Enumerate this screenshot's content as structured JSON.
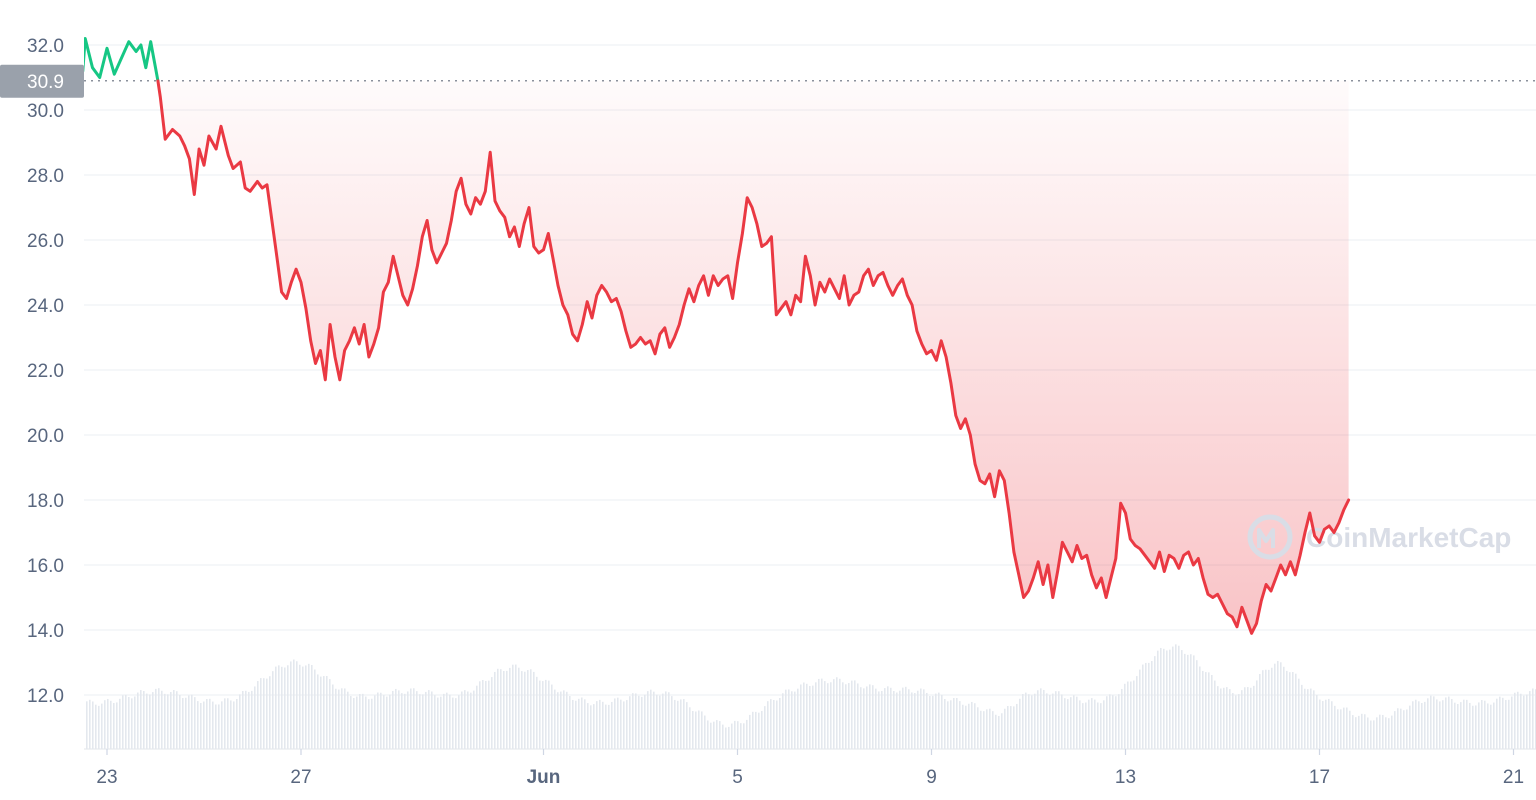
{
  "chart_data": {
    "type": "line",
    "title": "",
    "xlabel": "",
    "ylabel": "",
    "ylim": [
      10.5,
      32.5
    ],
    "yticks": [
      "12.0",
      "14.0",
      "16.0",
      "18.0",
      "20.0",
      "22.0",
      "24.0",
      "26.0",
      "28.0",
      "30.0",
      "32.0"
    ],
    "xticks": [
      {
        "label": "23",
        "day": 0
      },
      {
        "label": "27",
        "day": 4
      },
      {
        "label": "Jun",
        "day": 9,
        "bold": true
      },
      {
        "label": "5",
        "day": 13
      },
      {
        "label": "9",
        "day": 17
      },
      {
        "label": "13",
        "day": 21
      },
      {
        "label": "17",
        "day": 25
      },
      {
        "label": "21",
        "day": 29
      }
    ],
    "reference_price": 30.9,
    "reference_label": "30.9",
    "up_color": "#16c784",
    "down_color": "#ea3943",
    "grid": true,
    "legend": "none",
    "watermark": "CoinMarketCap",
    "series": [
      {
        "values": [
          [
            -0.5,
            31.2
          ],
          [
            -0.45,
            32.2
          ],
          [
            -0.3,
            31.3
          ],
          [
            -0.15,
            31.0
          ],
          [
            0.0,
            31.9
          ],
          [
            0.15,
            31.1
          ],
          [
            0.3,
            31.6
          ],
          [
            0.45,
            32.1
          ],
          [
            0.6,
            31.8
          ],
          [
            0.7,
            32.0
          ],
          [
            0.8,
            31.3
          ],
          [
            0.9,
            32.1
          ],
          [
            0.95,
            31.7
          ],
          [
            1.0,
            31.3
          ],
          [
            1.05,
            30.9
          ],
          [
            1.1,
            30.4
          ],
          [
            1.2,
            29.1
          ],
          [
            1.35,
            29.4
          ],
          [
            1.5,
            29.2
          ],
          [
            1.6,
            28.9
          ],
          [
            1.7,
            28.5
          ],
          [
            1.8,
            27.4
          ],
          [
            1.9,
            28.8
          ],
          [
            2.0,
            28.3
          ],
          [
            2.1,
            29.2
          ],
          [
            2.25,
            28.8
          ],
          [
            2.35,
            29.5
          ],
          [
            2.5,
            28.6
          ],
          [
            2.6,
            28.2
          ],
          [
            2.75,
            28.4
          ],
          [
            2.85,
            27.6
          ],
          [
            2.95,
            27.5
          ],
          [
            3.1,
            27.8
          ],
          [
            3.2,
            27.6
          ],
          [
            3.3,
            27.7
          ],
          [
            3.4,
            26.6
          ],
          [
            3.5,
            25.5
          ],
          [
            3.6,
            24.4
          ],
          [
            3.7,
            24.2
          ],
          [
            3.8,
            24.7
          ],
          [
            3.9,
            25.1
          ],
          [
            4.0,
            24.7
          ],
          [
            4.1,
            23.9
          ],
          [
            4.2,
            22.9
          ],
          [
            4.3,
            22.2
          ],
          [
            4.4,
            22.6
          ],
          [
            4.5,
            21.7
          ],
          [
            4.6,
            23.4
          ],
          [
            4.7,
            22.4
          ],
          [
            4.8,
            21.7
          ],
          [
            4.9,
            22.6
          ],
          [
            5.0,
            22.9
          ],
          [
            5.1,
            23.3
          ],
          [
            5.2,
            22.8
          ],
          [
            5.3,
            23.4
          ],
          [
            5.4,
            22.4
          ],
          [
            5.5,
            22.8
          ],
          [
            5.6,
            23.3
          ],
          [
            5.7,
            24.4
          ],
          [
            5.8,
            24.7
          ],
          [
            5.9,
            25.5
          ],
          [
            6.0,
            24.9
          ],
          [
            6.1,
            24.3
          ],
          [
            6.2,
            24.0
          ],
          [
            6.3,
            24.5
          ],
          [
            6.4,
            25.2
          ],
          [
            6.5,
            26.1
          ],
          [
            6.6,
            26.6
          ],
          [
            6.7,
            25.7
          ],
          [
            6.8,
            25.3
          ],
          [
            6.9,
            25.6
          ],
          [
            7.0,
            25.9
          ],
          [
            7.1,
            26.6
          ],
          [
            7.2,
            27.5
          ],
          [
            7.3,
            27.9
          ],
          [
            7.4,
            27.1
          ],
          [
            7.5,
            26.8
          ],
          [
            7.6,
            27.3
          ],
          [
            7.7,
            27.1
          ],
          [
            7.8,
            27.5
          ],
          [
            7.9,
            28.7
          ],
          [
            8.0,
            27.2
          ],
          [
            8.1,
            26.9
          ],
          [
            8.2,
            26.7
          ],
          [
            8.3,
            26.1
          ],
          [
            8.4,
            26.4
          ],
          [
            8.5,
            25.8
          ],
          [
            8.6,
            26.5
          ],
          [
            8.7,
            27.0
          ],
          [
            8.8,
            25.8
          ],
          [
            8.9,
            25.6
          ],
          [
            9.0,
            25.7
          ],
          [
            9.1,
            26.2
          ],
          [
            9.2,
            25.4
          ],
          [
            9.3,
            24.6
          ],
          [
            9.4,
            24.0
          ],
          [
            9.5,
            23.7
          ],
          [
            9.6,
            23.1
          ],
          [
            9.7,
            22.9
          ],
          [
            9.8,
            23.4
          ],
          [
            9.9,
            24.1
          ],
          [
            10.0,
            23.6
          ],
          [
            10.1,
            24.3
          ],
          [
            10.2,
            24.6
          ],
          [
            10.3,
            24.4
          ],
          [
            10.4,
            24.1
          ],
          [
            10.5,
            24.2
          ],
          [
            10.6,
            23.8
          ],
          [
            10.7,
            23.2
          ],
          [
            10.8,
            22.7
          ],
          [
            10.9,
            22.8
          ],
          [
            11.0,
            23.0
          ],
          [
            11.1,
            22.8
          ],
          [
            11.2,
            22.9
          ],
          [
            11.3,
            22.5
          ],
          [
            11.4,
            23.1
          ],
          [
            11.5,
            23.3
          ],
          [
            11.6,
            22.7
          ],
          [
            11.7,
            23.0
          ],
          [
            11.8,
            23.4
          ],
          [
            11.9,
            24.0
          ],
          [
            12.0,
            24.5
          ],
          [
            12.1,
            24.1
          ],
          [
            12.2,
            24.6
          ],
          [
            12.3,
            24.9
          ],
          [
            12.4,
            24.3
          ],
          [
            12.5,
            24.9
          ],
          [
            12.6,
            24.6
          ],
          [
            12.7,
            24.8
          ],
          [
            12.8,
            24.9
          ],
          [
            12.9,
            24.2
          ],
          [
            13.0,
            25.3
          ],
          [
            13.1,
            26.2
          ],
          [
            13.2,
            27.3
          ],
          [
            13.3,
            27.0
          ],
          [
            13.4,
            26.5
          ],
          [
            13.5,
            25.8
          ],
          [
            13.6,
            25.9
          ],
          [
            13.7,
            26.1
          ],
          [
            13.8,
            23.7
          ],
          [
            13.9,
            23.9
          ],
          [
            14.0,
            24.1
          ],
          [
            14.1,
            23.7
          ],
          [
            14.2,
            24.3
          ],
          [
            14.3,
            24.1
          ],
          [
            14.4,
            25.5
          ],
          [
            14.5,
            24.9
          ],
          [
            14.6,
            24.0
          ],
          [
            14.7,
            24.7
          ],
          [
            14.8,
            24.4
          ],
          [
            14.9,
            24.8
          ],
          [
            15.0,
            24.5
          ],
          [
            15.1,
            24.2
          ],
          [
            15.2,
            24.9
          ],
          [
            15.3,
            24.0
          ],
          [
            15.4,
            24.3
          ],
          [
            15.5,
            24.4
          ],
          [
            15.6,
            24.9
          ],
          [
            15.7,
            25.1
          ],
          [
            15.8,
            24.6
          ],
          [
            15.9,
            24.9
          ],
          [
            16.0,
            25.0
          ],
          [
            16.1,
            24.6
          ],
          [
            16.2,
            24.3
          ],
          [
            16.3,
            24.6
          ],
          [
            16.4,
            24.8
          ],
          [
            16.5,
            24.3
          ],
          [
            16.6,
            24.0
          ],
          [
            16.7,
            23.2
          ],
          [
            16.8,
            22.8
          ],
          [
            16.9,
            22.5
          ],
          [
            17.0,
            22.6
          ],
          [
            17.1,
            22.3
          ],
          [
            17.2,
            22.9
          ],
          [
            17.3,
            22.4
          ],
          [
            17.4,
            21.6
          ],
          [
            17.5,
            20.6
          ],
          [
            17.6,
            20.2
          ],
          [
            17.7,
            20.5
          ],
          [
            17.8,
            20.0
          ],
          [
            17.9,
            19.1
          ],
          [
            18.0,
            18.6
          ],
          [
            18.1,
            18.5
          ],
          [
            18.2,
            18.8
          ],
          [
            18.3,
            18.1
          ],
          [
            18.4,
            18.9
          ],
          [
            18.5,
            18.6
          ],
          [
            18.6,
            17.6
          ],
          [
            18.7,
            16.4
          ],
          [
            18.8,
            15.7
          ],
          [
            18.9,
            15.0
          ],
          [
            19.0,
            15.2
          ],
          [
            19.1,
            15.6
          ],
          [
            19.2,
            16.1
          ],
          [
            19.3,
            15.4
          ],
          [
            19.4,
            16.0
          ],
          [
            19.5,
            15.0
          ],
          [
            19.6,
            15.8
          ],
          [
            19.7,
            16.7
          ],
          [
            19.8,
            16.4
          ],
          [
            19.9,
            16.1
          ],
          [
            20.0,
            16.6
          ],
          [
            20.1,
            16.2
          ],
          [
            20.2,
            16.3
          ],
          [
            20.3,
            15.7
          ],
          [
            20.4,
            15.3
          ],
          [
            20.5,
            15.6
          ],
          [
            20.6,
            15.0
          ],
          [
            20.7,
            15.6
          ],
          [
            20.8,
            16.2
          ],
          [
            20.9,
            17.9
          ],
          [
            21.0,
            17.6
          ],
          [
            21.1,
            16.8
          ],
          [
            21.2,
            16.6
          ],
          [
            21.3,
            16.5
          ],
          [
            21.4,
            16.3
          ],
          [
            21.5,
            16.1
          ],
          [
            21.6,
            15.9
          ],
          [
            21.7,
            16.4
          ],
          [
            21.8,
            15.8
          ],
          [
            21.9,
            16.3
          ],
          [
            22.0,
            16.2
          ],
          [
            22.1,
            15.9
          ],
          [
            22.2,
            16.3
          ],
          [
            22.3,
            16.4
          ],
          [
            22.4,
            16.0
          ],
          [
            22.5,
            16.2
          ],
          [
            22.6,
            15.6
          ],
          [
            22.7,
            15.1
          ],
          [
            22.8,
            15.0
          ],
          [
            22.9,
            15.1
          ],
          [
            23.0,
            14.8
          ],
          [
            23.1,
            14.5
          ],
          [
            23.2,
            14.4
          ],
          [
            23.3,
            14.1
          ],
          [
            23.4,
            14.7
          ],
          [
            23.5,
            14.3
          ],
          [
            23.6,
            13.9
          ],
          [
            23.7,
            14.2
          ],
          [
            23.8,
            14.9
          ],
          [
            23.9,
            15.4
          ],
          [
            24.0,
            15.2
          ],
          [
            24.1,
            15.6
          ],
          [
            24.2,
            16.0
          ],
          [
            24.3,
            15.7
          ],
          [
            24.4,
            16.1
          ],
          [
            24.5,
            15.7
          ],
          [
            24.6,
            16.3
          ],
          [
            24.7,
            17.0
          ],
          [
            24.8,
            17.6
          ],
          [
            24.9,
            16.9
          ],
          [
            25.0,
            16.7
          ],
          [
            25.1,
            17.1
          ],
          [
            25.2,
            17.2
          ],
          [
            25.3,
            17.0
          ],
          [
            25.4,
            17.3
          ],
          [
            25.5,
            17.7
          ],
          [
            25.6,
            18.0
          ]
        ]
      }
    ]
  }
}
